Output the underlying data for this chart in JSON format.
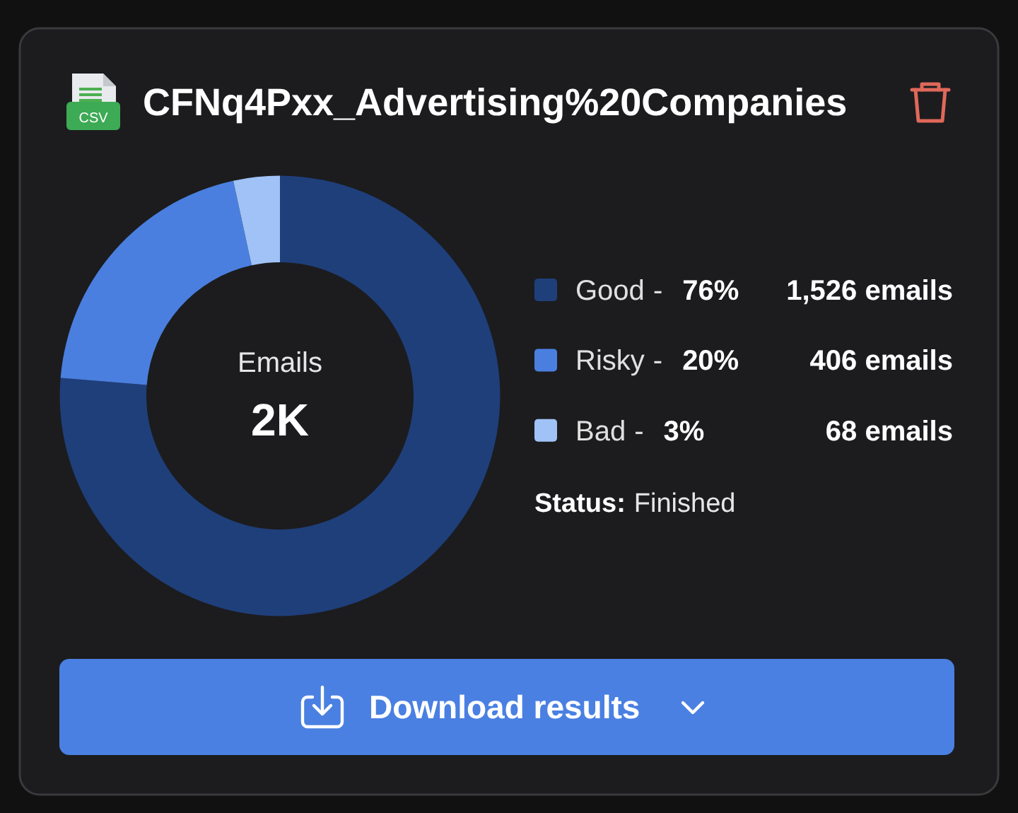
{
  "chart_data": {
    "type": "donut",
    "title": "CFNq4Pxx_Advertising%20Companies",
    "categories": [
      "Good",
      "Risky",
      "Bad"
    ],
    "values": [
      1526,
      406,
      68
    ],
    "colors": [
      "#1f3f7b",
      "#4a7fe0",
      "#a0c2f6"
    ],
    "value_labels": [
      "1,526 emails",
      "406 emails",
      "68 emails"
    ],
    "legend": "right",
    "annotations": [
      "CSV",
      "Emails",
      "2K",
      "-",
      "76%",
      "-",
      "20%",
      "-",
      "3%",
      "Status:",
      "Finished",
      "Download results"
    ]
  }
}
